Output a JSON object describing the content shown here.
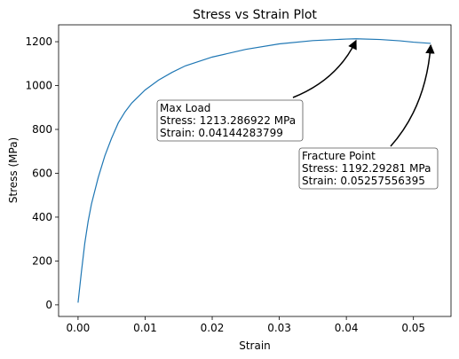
{
  "chart_data": {
    "type": "line",
    "title": "Stress vs Strain Plot",
    "x_label": "Strain",
    "y_label": "Stress (MPa)",
    "x": [
      0,
      0.0005,
      0.001,
      0.0015,
      0.002,
      0.003,
      0.004,
      0.005,
      0.006,
      0.007,
      0.008,
      0.01,
      0.012,
      0.014,
      0.016,
      0.018,
      0.02,
      0.025,
      0.03,
      0.035,
      0.04,
      0.04144283799,
      0.045,
      0.048,
      0.05,
      0.05257556395
    ],
    "series": [
      {
        "color": "#1f77b4",
        "values": [
          10,
          150,
          280,
          380,
          460,
          580,
          680,
          760,
          830,
          880,
          920,
          980,
          1025,
          1060,
          1090,
          1110,
          1130,
          1165,
          1190,
          1205,
          1212,
          1213.286922,
          1210,
          1204,
          1198,
          1192.29281
        ]
      }
    ],
    "xlim": [
      -0.0029,
      0.0556
    ],
    "ylim": [
      -53,
      1277
    ],
    "xticks": [
      {
        "value": 0,
        "label": "0.00"
      },
      {
        "value": 0.01,
        "label": "0.01"
      },
      {
        "value": 0.02,
        "label": "0.02"
      },
      {
        "value": 0.03,
        "label": "0.03"
      },
      {
        "value": 0.04,
        "label": "0.04"
      },
      {
        "value": 0.05,
        "label": "0.05"
      }
    ],
    "yticks": [
      0,
      200,
      400,
      600,
      800,
      1000,
      1200
    ],
    "annotations": [
      {
        "lines": [
          "Max Load",
          "Stress: 1213.286922 MPa",
          "Strain: 0.04144283799"
        ],
        "x": 0.04144283799,
        "y": 1213.286922
      },
      {
        "lines": [
          "Fracture Point",
          "Stress: 1192.29281 MPa",
          "Strain: 0.05257556395"
        ],
        "x": 0.05257556395,
        "y": 1192.29281
      }
    ]
  }
}
